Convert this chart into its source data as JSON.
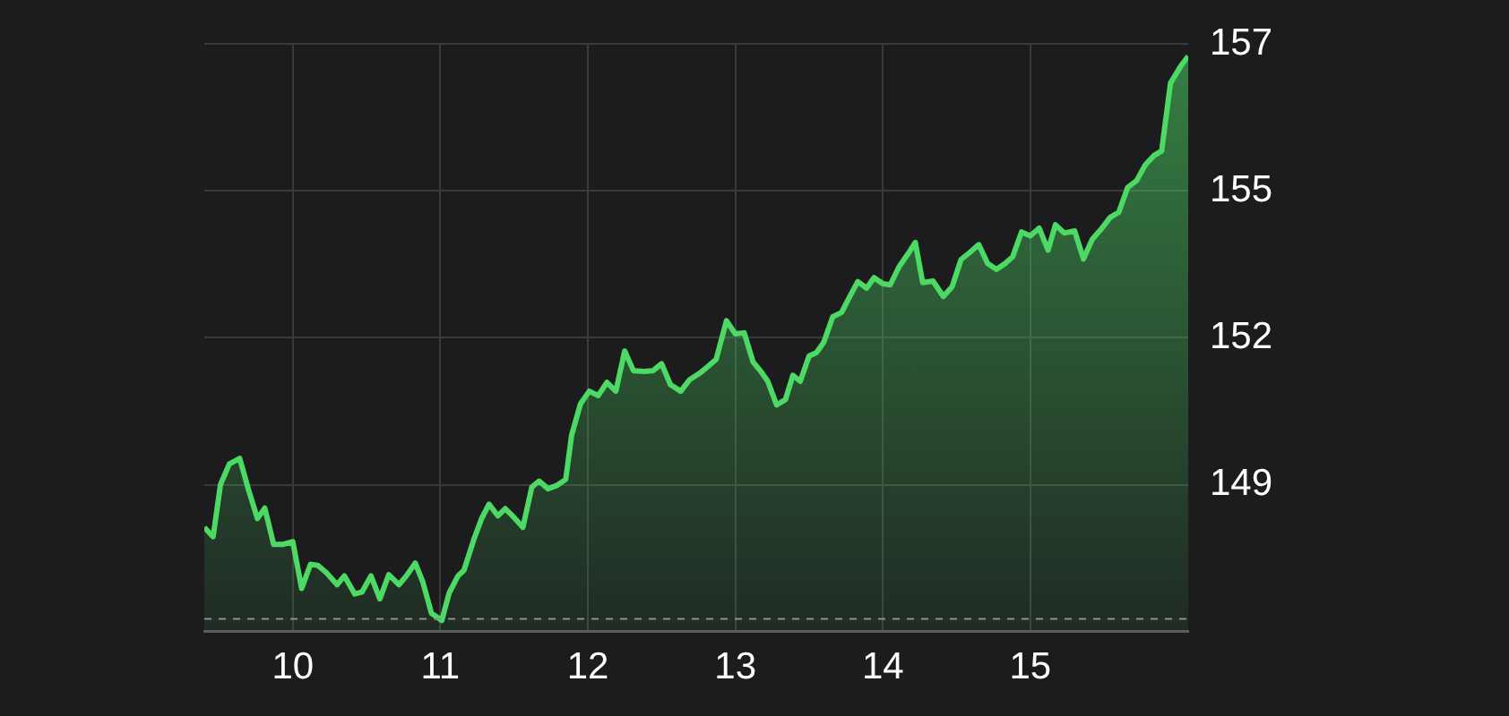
{
  "chart_data": {
    "type": "area",
    "x": [
      9.4,
      9.46,
      9.51,
      9.57,
      9.64,
      9.7,
      9.76,
      9.81,
      9.87,
      9.93,
      10.0,
      10.06,
      10.12,
      10.17,
      10.23,
      10.3,
      10.35,
      10.42,
      10.47,
      10.53,
      10.59,
      10.65,
      10.72,
      10.77,
      10.83,
      10.88,
      10.94,
      11.01,
      11.06,
      11.12,
      11.16,
      11.23,
      11.28,
      11.33,
      11.39,
      11.44,
      11.5,
      11.56,
      11.62,
      11.67,
      11.73,
      11.79,
      11.85,
      11.89,
      11.95,
      12.01,
      12.07,
      12.13,
      12.19,
      12.25,
      12.31,
      12.38,
      12.44,
      12.5,
      12.56,
      12.63,
      12.69,
      12.76,
      12.81,
      12.87,
      12.94,
      13.0,
      13.06,
      13.12,
      13.17,
      13.22,
      13.28,
      13.34,
      13.39,
      13.44,
      13.5,
      13.55,
      13.6,
      13.66,
      13.72,
      13.77,
      13.83,
      13.89,
      13.94,
      14.0,
      14.05,
      14.11,
      14.17,
      14.22,
      14.27,
      14.34,
      14.41,
      14.47,
      14.53,
      14.59,
      14.65,
      14.71,
      14.77,
      14.83,
      14.88,
      14.94,
      15.0,
      15.06,
      15.12,
      15.17,
      15.23,
      15.3,
      15.36,
      15.42,
      15.48,
      15.54,
      15.6,
      15.66,
      15.72,
      15.78,
      15.84,
      15.89,
      15.95,
      16.02,
      16.07
    ],
    "series": [
      {
        "color": "#4cd964",
        "values": [
          148.56,
          148.39,
          149.34,
          149.71,
          149.81,
          149.24,
          148.72,
          148.91,
          148.25,
          148.25,
          148.3,
          147.45,
          147.89,
          147.87,
          147.73,
          147.52,
          147.68,
          147.35,
          147.39,
          147.68,
          147.26,
          147.7,
          147.52,
          147.68,
          147.91,
          147.58,
          147.0,
          146.87,
          147.37,
          147.68,
          147.78,
          148.36,
          148.72,
          148.98,
          148.77,
          148.9,
          148.74,
          148.56,
          149.29,
          149.4,
          149.26,
          149.32,
          149.43,
          150.23,
          150.8,
          151.03,
          150.95,
          151.19,
          151.03,
          151.76,
          151.4,
          151.39,
          151.4,
          151.53,
          151.15,
          151.03,
          151.24,
          151.36,
          151.47,
          151.61,
          152.31,
          152.07,
          152.09,
          151.56,
          151.4,
          151.21,
          150.78,
          150.88,
          151.32,
          151.21,
          151.67,
          151.73,
          151.92,
          152.38,
          152.46,
          152.72,
          153.02,
          152.9,
          153.09,
          152.98,
          152.96,
          153.29,
          153.52,
          153.73,
          153.0,
          153.03,
          152.75,
          152.93,
          153.42,
          153.55,
          153.69,
          153.35,
          153.24,
          153.35,
          153.47,
          153.92,
          153.85,
          153.99,
          153.59,
          154.05,
          153.9,
          153.94,
          153.43,
          153.79,
          153.97,
          154.18,
          154.28,
          154.73,
          154.85,
          155.14,
          155.31,
          155.39,
          156.62,
          156.93,
          157.11
        ]
      }
    ],
    "xlim": [
      9.4,
      16.07
    ],
    "xticks": [
      10,
      11,
      12,
      13,
      14,
      15
    ],
    "ylim": [
      146.67,
      157.33
    ],
    "yticks": [
      {
        "value": 157.33,
        "label": "157"
      },
      {
        "value": 154.67,
        "label": "155"
      },
      152,
      {
        "value": 149.33,
        "label": "149"
      }
    ],
    "ref_lines": [
      {
        "axis": "y",
        "value": 146.9,
        "color": "#8e8e93",
        "line_style": "dashed"
      }
    ],
    "grid": true,
    "legend": false
  }
}
